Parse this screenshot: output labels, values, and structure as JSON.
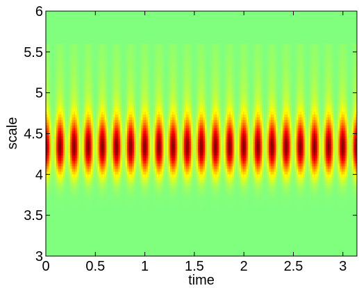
{
  "chart_data": {
    "type": "heatmap",
    "title": "",
    "xlabel": "time",
    "ylabel": "scale",
    "xlim": [
      0,
      3.1416
    ],
    "ylim": [
      3,
      6
    ],
    "x_ticks": [
      "0",
      "0.5",
      "1",
      "1.5",
      "2",
      "2.5",
      "3"
    ],
    "x_tick_values": [
      0,
      0.5,
      1,
      1.5,
      2,
      2.5,
      3
    ],
    "y_ticks": [
      "3",
      "3.5",
      "4",
      "4.5",
      "5",
      "5.5",
      "6"
    ],
    "y_tick_values": [
      3,
      3.5,
      4,
      4.5,
      5,
      5.5,
      6
    ],
    "grid": false,
    "colormap": "jet",
    "background_value_color": "#80ff80",
    "band": {
      "center_scale": 4.33,
      "scale_halfwidth": 0.32,
      "upper_tail_scale": 5.6,
      "oscillations": 22,
      "peak_color": "#7a0000"
    }
  }
}
